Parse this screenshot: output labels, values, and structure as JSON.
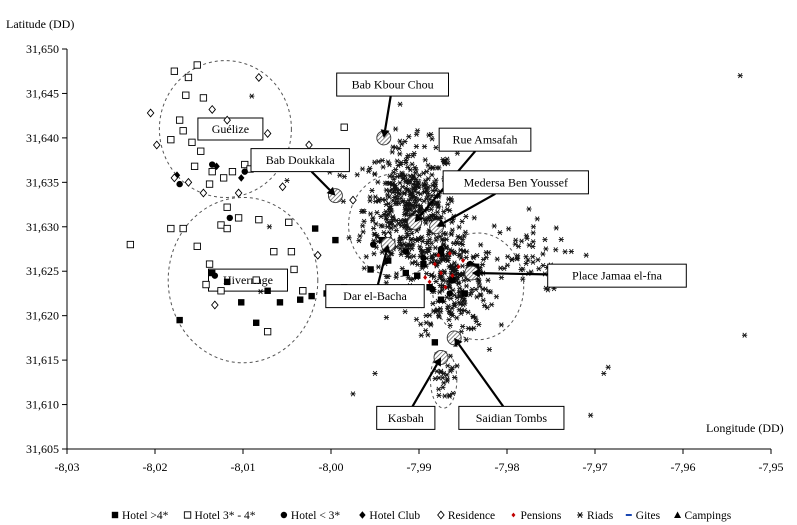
{
  "chart_data": {
    "type": "scatter",
    "xlabel": "Longitude (DD)",
    "ylabel": "Latitude (DD)",
    "xlim": [
      -8.03,
      -7.95
    ],
    "ylim": [
      31.605,
      31.65
    ],
    "x_ticks": [
      -8.03,
      -8.02,
      -8.01,
      -8.0,
      -7.99,
      -7.98,
      -7.97,
      -7.96,
      -7.95
    ],
    "y_ticks": [
      31.605,
      31.61,
      31.615,
      31.62,
      31.625,
      31.63,
      31.635,
      31.64,
      31.645,
      31.65
    ],
    "x_tick_labels": [
      "-8,03",
      "-8,02",
      "-8,01",
      "-8,00",
      "-7,99",
      "-7,98",
      "-7,97",
      "-7,96",
      "-7,95"
    ],
    "y_tick_labels": [
      "31,605",
      "31,610",
      "31,615",
      "31,620",
      "31,625",
      "31,630",
      "31,635",
      "31,640",
      "31,645",
      "31,650"
    ],
    "grid": false,
    "legend_position": "bottom",
    "series": [
      {
        "name": "Hotel >4*",
        "marker": "filled-square",
        "color": "#000000",
        "points": [
          [
            -8.0172,
            31.6195
          ],
          [
            -8.0135,
            31.6248
          ],
          [
            -8.0118,
            31.6238
          ],
          [
            -8.0102,
            31.6215
          ],
          [
            -8.0085,
            31.6192
          ],
          [
            -8.0072,
            31.6228
          ],
          [
            -8.0058,
            31.6215
          ],
          [
            -8.0035,
            31.6218
          ],
          [
            -8.0022,
            31.6222
          ],
          [
            -8.0005,
            31.6225
          ],
          [
            -7.9995,
            31.6285
          ],
          [
            -7.9985,
            31.6232
          ],
          [
            -7.9962,
            31.6218
          ],
          [
            -7.9955,
            31.6252
          ],
          [
            -7.9935,
            31.6262
          ],
          [
            -7.9915,
            31.6248
          ],
          [
            -7.9902,
            31.6245
          ],
          [
            -7.9888,
            31.6232
          ],
          [
            -7.9875,
            31.6218
          ],
          [
            -7.9862,
            31.624
          ],
          [
            -7.9848,
            31.6225
          ],
          [
            -7.9835,
            31.6255
          ],
          [
            -7.9882,
            31.617
          ],
          [
            -7.9895,
            31.6258
          ],
          [
            -8.0018,
            31.6298
          ],
          [
            -7.9942,
            31.6285
          ],
          [
            -7.9875,
            31.627
          ]
        ]
      },
      {
        "name": "Hotel 3* - 4*",
        "marker": "open-square",
        "color": "#000000",
        "points": [
          [
            -8.0228,
            31.628
          ],
          [
            -8.0182,
            31.6298
          ],
          [
            -8.0168,
            31.6298
          ],
          [
            -8.0152,
            31.6278
          ],
          [
            -8.0138,
            31.6258
          ],
          [
            -8.0125,
            31.6302
          ],
          [
            -8.0118,
            31.6322
          ],
          [
            -8.0105,
            31.631
          ],
          [
            -8.0085,
            31.624
          ],
          [
            -8.0072,
            31.6182
          ],
          [
            -8.0048,
            31.6305
          ],
          [
            -8.0032,
            31.6228
          ],
          [
            -7.9985,
            31.6412
          ],
          [
            -8.0178,
            31.6475
          ],
          [
            -8.0162,
            31.6468
          ],
          [
            -8.0152,
            31.6482
          ],
          [
            -8.0165,
            31.6448
          ],
          [
            -8.0145,
            31.6445
          ],
          [
            -8.0172,
            31.642
          ],
          [
            -8.0158,
            31.6395
          ],
          [
            -8.0148,
            31.6385
          ],
          [
            -8.0155,
            31.6368
          ],
          [
            -8.0135,
            31.6362
          ],
          [
            -8.0122,
            31.6355
          ],
          [
            -8.0112,
            31.6362
          ],
          [
            -8.0098,
            31.637
          ],
          [
            -8.0092,
            31.6365
          ],
          [
            -8.0182,
            31.6398
          ],
          [
            -8.0168,
            31.6408
          ],
          [
            -8.0138,
            31.6348
          ],
          [
            -8.0118,
            31.6298
          ],
          [
            -8.0142,
            31.6235
          ],
          [
            -8.0125,
            31.6228
          ],
          [
            -8.0065,
            31.6272
          ],
          [
            -8.0045,
            31.6272
          ],
          [
            -8.0042,
            31.6252
          ],
          [
            -8.0082,
            31.6308
          ],
          [
            -8.0032,
            31.6228
          ]
        ]
      },
      {
        "name": "Hotel < 3*",
        "marker": "filled-circle",
        "color": "#000000",
        "points": [
          [
            -8.0172,
            31.6348
          ],
          [
            -8.0135,
            31.637
          ],
          [
            -8.0098,
            31.6362
          ],
          [
            -8.0115,
            31.631
          ],
          [
            -8.0132,
            31.6245
          ],
          [
            -7.9952,
            31.628
          ],
          [
            -7.9915,
            31.6272
          ],
          [
            -7.9895,
            31.6265
          ],
          [
            -7.9885,
            31.623
          ],
          [
            -7.9865,
            31.6225
          ],
          [
            -7.9842,
            31.6258
          ],
          [
            -7.9875,
            31.6275
          ]
        ]
      },
      {
        "name": "Hotel Club",
        "marker": "filled-diamond",
        "color": "#000000",
        "points": [
          [
            -8.0175,
            31.6358
          ],
          [
            -8.0102,
            31.6355
          ],
          [
            -8.013,
            31.6368
          ]
        ]
      },
      {
        "name": "Residence",
        "marker": "open-diamond",
        "color": "#000000",
        "points": [
          [
            -8.0205,
            31.6428
          ],
          [
            -8.0198,
            31.6392
          ],
          [
            -8.0178,
            31.6355
          ],
          [
            -8.0162,
            31.635
          ],
          [
            -8.0135,
            31.6432
          ],
          [
            -8.0118,
            31.642
          ],
          [
            -8.0082,
            31.6468
          ],
          [
            -8.0072,
            31.6405
          ],
          [
            -8.0055,
            31.6345
          ],
          [
            -8.0025,
            31.6392
          ],
          [
            -8.0015,
            31.6268
          ],
          [
            -8.0132,
            31.6212
          ],
          [
            -8.0145,
            31.6338
          ],
          [
            -8.0105,
            31.6338
          ],
          [
            -7.9975,
            31.633
          ],
          [
            -7.9935,
            31.629
          ]
        ]
      },
      {
        "name": "Pensions",
        "marker": "small-diamond",
        "color": "#c00000",
        "points": [
          [
            -7.9888,
            31.6238
          ],
          [
            -7.9875,
            31.6248
          ],
          [
            -7.9862,
            31.6245
          ],
          [
            -7.9855,
            31.6255
          ],
          [
            -7.987,
            31.6232
          ],
          [
            -7.9882,
            31.6258
          ],
          [
            -7.9893,
            31.6243
          ],
          [
            -7.9878,
            31.6268
          ],
          [
            -7.985,
            31.6262
          ],
          [
            -7.9865,
            31.627
          ]
        ]
      },
      {
        "name": "Riads",
        "marker": "asterisk",
        "color": "#000000",
        "points_cluster": true
      },
      {
        "name": "Gites",
        "marker": "dash",
        "color": "#0033aa",
        "points": []
      },
      {
        "name": "Campings",
        "marker": "filled-triangle",
        "color": "#000000",
        "points": []
      }
    ],
    "riad_clusters": [
      {
        "cx": -7.991,
        "cy": 31.632,
        "sx": 0.0035,
        "sy": 0.0048,
        "n": 480
      },
      {
        "cx": -7.986,
        "cy": 31.624,
        "sx": 0.003,
        "sy": 0.004,
        "n": 260
      },
      {
        "cx": -7.978,
        "cy": 31.6265,
        "sx": 0.003,
        "sy": 0.0025,
        "n": 50
      },
      {
        "cx": -7.987,
        "cy": 31.613,
        "sx": 0.0008,
        "sy": 0.0018,
        "n": 25
      }
    ],
    "riad_outliers": [
      [
        -7.9535,
        31.647
      ],
      [
        -7.953,
        31.6178
      ],
      [
        -7.969,
        31.6135
      ],
      [
        -7.9685,
        31.6142
      ],
      [
        -7.9705,
        31.6088
      ],
      [
        -7.995,
        31.6135
      ],
      [
        -7.9975,
        31.6112
      ],
      [
        -7.9725,
        31.6255
      ],
      [
        -7.971,
        31.6268
      ],
      [
        -7.9775,
        31.632
      ],
      [
        -7.977,
        31.63
      ],
      [
        -8.007,
        31.63
      ],
      [
        -8.005,
        31.6352
      ],
      [
        -7.999,
        31.6358
      ],
      [
        -8.009,
        31.6447
      ],
      [
        -7.982,
        31.6162
      ],
      [
        -7.9832,
        31.619
      ],
      [
        -8.008,
        31.6227
      ]
    ],
    "zones": [
      {
        "label": "Guélize",
        "cx": -8.012,
        "cy": 31.641,
        "rx": 0.0075,
        "ry": 0.0077
      },
      {
        "label": "Hivernage",
        "cx": -8.01,
        "cy": 31.624,
        "rx": 0.0085,
        "ry": 0.0093
      },
      {
        "label": "",
        "cx": -7.9925,
        "cy": 31.6302,
        "rx": 0.0055,
        "ry": 0.0058
      },
      {
        "label": "",
        "cx": -7.9833,
        "cy": 31.6233,
        "rx": 0.0052,
        "ry": 0.006
      },
      {
        "label": "",
        "cx": -7.9872,
        "cy": 31.6128,
        "rx": 0.0015,
        "ry": 0.0032
      }
    ],
    "annotations": [
      {
        "label": "Bab Kbour Chou",
        "target": [
          -7.994,
          31.64
        ],
        "box": [
          -7.993,
          31.646
        ]
      },
      {
        "label": "Bab Doukkala",
        "target": [
          -7.9995,
          31.6335
        ],
        "box": [
          -8.0035,
          31.6375
        ]
      },
      {
        "label": "Rue Amsafah",
        "target": [
          -7.9905,
          31.6305
        ],
        "box": [
          -7.9825,
          31.6398
        ]
      },
      {
        "label": "Medersa Ben Youssef",
        "target": [
          -7.988,
          31.63
        ],
        "box": [
          -7.979,
          31.635
        ]
      },
      {
        "label": "Dar el-Bacha",
        "target": [
          -7.9935,
          31.628
        ],
        "box": [
          -7.995,
          31.6222
        ]
      },
      {
        "label": "Place Jamaa el-fna",
        "target": [
          -7.984,
          31.6248
        ],
        "box": [
          -7.9675,
          31.6245
        ]
      },
      {
        "label": "Kasbah",
        "target": [
          -7.9875,
          31.6153
        ],
        "box": [
          -7.9915,
          31.6085
        ]
      },
      {
        "label": "Saidian Tombs",
        "target": [
          -7.986,
          31.6175
        ],
        "box": [
          -7.9795,
          31.6085
        ]
      }
    ],
    "target_markers": [
      [
        -7.994,
        31.64
      ],
      [
        -7.9995,
        31.6335
      ],
      [
        -7.9905,
        31.6305
      ],
      [
        -7.988,
        31.63
      ],
      [
        -7.9935,
        31.628
      ],
      [
        -7.984,
        31.6248
      ],
      [
        -7.9875,
        31.6153
      ],
      [
        -7.986,
        31.6175
      ]
    ]
  }
}
